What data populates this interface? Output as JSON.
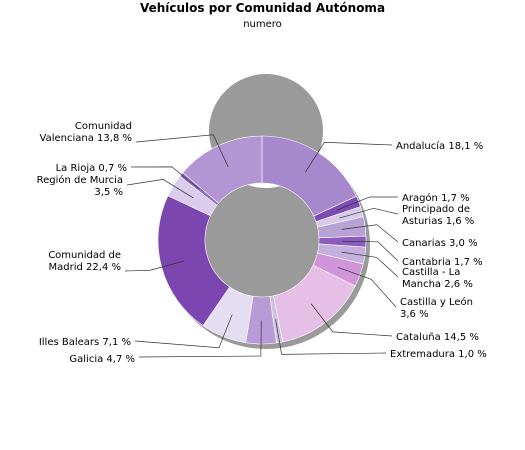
{
  "chart_data": {
    "type": "pie",
    "donut": true,
    "title": "Vehículos por Comunidad Autónoma",
    "subtitle": "numero",
    "slices": [
      {
        "name": "Andalucía",
        "value": 18.1,
        "label": "Andalucía 18,1 %",
        "color": "#a788cc"
      },
      {
        "name": "Aragón",
        "value": 1.7,
        "label": "Aragón 1,7 %",
        "color": "#7d4bb4"
      },
      {
        "name": "Principado de Asturias",
        "value": 1.6,
        "label": "Principado de|Asturias 1,6 %",
        "color": "#d8cbea"
      },
      {
        "name": "Canarias",
        "value": 3.0,
        "label": "Canarias 3,0 %",
        "color": "#b7a1d6"
      },
      {
        "name": "Cantabria",
        "value": 1.7,
        "label": "Cantabria 1,7 %",
        "color": "#8a5cbd"
      },
      {
        "name": "Castilla - La Mancha",
        "value": 2.6,
        "label": "Castilla - La|Mancha 2,6 %",
        "color": "#c4b0de"
      },
      {
        "name": "Castilla y León",
        "value": 3.6,
        "label": "Castilla y León|3,6 %",
        "color": "#cf95d8"
      },
      {
        "name": "Cataluña",
        "value": 14.5,
        "label": "Cataluña 14,5 %",
        "color": "#e6bfe6"
      },
      {
        "name": "Extremadura",
        "value": 1.0,
        "label": "Extremadura 1,0 %",
        "color": "#cfc0e3"
      },
      {
        "name": "Galicia",
        "value": 4.7,
        "label": "Galicia 4,7 %",
        "color": "#b79ad6"
      },
      {
        "name": "Illes Balears",
        "value": 7.1,
        "label": "Illes Balears 7,1 %",
        "color": "#e5def2"
      },
      {
        "name": "Comunidad de Madrid",
        "value": 22.4,
        "label": "Comunidad de|Madrid 22,4 %",
        "color": "#7c46b0"
      },
      {
        "name": "Región de Murcia",
        "value": 3.5,
        "label": "Región de Murcia|3,5 %",
        "color": "#d9cced"
      },
      {
        "name": "La Rioja",
        "value": 0.7,
        "label": "La Rioja 0,7 %",
        "color": "#8d69c0"
      },
      {
        "name": "Comunidad Valenciana",
        "value": 13.8,
        "label": "Comunidad|Valenciana 13,8 %",
        "color": "#b296d4"
      }
    ]
  }
}
